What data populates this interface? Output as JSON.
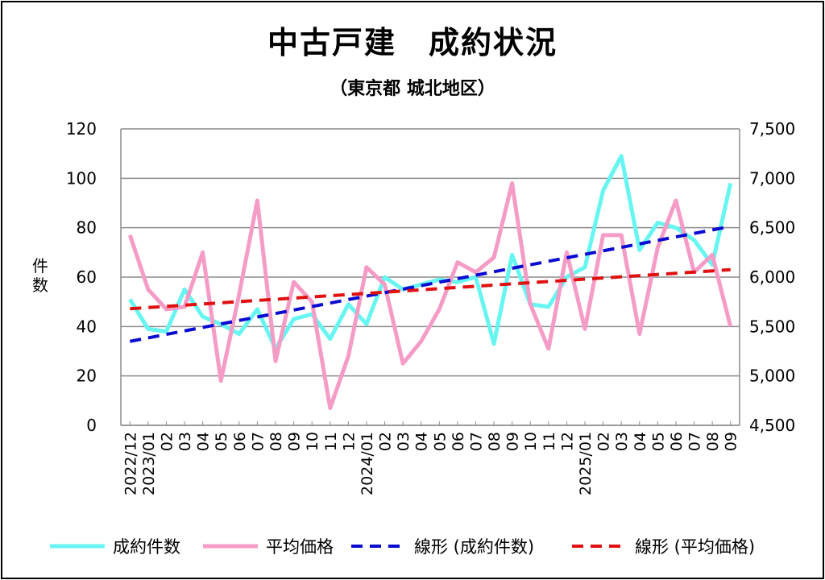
{
  "chart_data": {
    "type": "line",
    "title": "中古戸建　成約状況",
    "subtitle": "（東京都 城北地区）",
    "ylabel": "件数",
    "y2label": "",
    "xlabel": "",
    "categories": [
      "2022/12",
      "2023/01",
      "02",
      "03",
      "04",
      "05",
      "06",
      "07",
      "08",
      "09",
      "10",
      "11",
      "12",
      "2024/01",
      "02",
      "03",
      "04",
      "05",
      "06",
      "07",
      "08",
      "09",
      "10",
      "11",
      "12",
      "2025/01",
      "02",
      "03",
      "04",
      "05",
      "06",
      "07",
      "08",
      "09"
    ],
    "ylim": [
      0,
      120
    ],
    "y2lim": [
      4500,
      7500
    ],
    "yticks": [
      "0",
      "20",
      "40",
      "60",
      "80",
      "100",
      "120"
    ],
    "y2ticks": [
      "4,500",
      "5,000",
      "5,500",
      "6,000",
      "6,500",
      "7,000",
      "7,500"
    ],
    "grid": true,
    "legend_position": "bottom",
    "series": [
      {
        "name": "成約件数",
        "axis": "left",
        "color": "#66f5f0",
        "style": "solid",
        "values": [
          51,
          39,
          38,
          55,
          44,
          41,
          37,
          47,
          31,
          43,
          45,
          35,
          49,
          41,
          60,
          55,
          57,
          59,
          58,
          60,
          33,
          69,
          49,
          48,
          60,
          64,
          95,
          109,
          71,
          82,
          80,
          75,
          65,
          98
        ]
      },
      {
        "name": "平均価格",
        "axis": "right",
        "color": "#f59cc6",
        "style": "solid",
        "values": [
          6425,
          5875,
          5675,
          5700,
          6250,
          4950,
          5825,
          6775,
          5150,
          5950,
          5750,
          4675,
          5200,
          6100,
          5925,
          5125,
          5350,
          5675,
          6150,
          6050,
          6200,
          6950,
          5725,
          5275,
          6250,
          5475,
          6425,
          6425,
          5425,
          6300,
          6775,
          6050,
          6225,
          5500
        ]
      },
      {
        "name": "線形 (成約件数)",
        "axis": "left",
        "color": "#0a0ad0",
        "style": "dashed",
        "trend": [
          34,
          80.5
        ]
      },
      {
        "name": "線形 (平均価格)",
        "axis": "right",
        "color": "#e01010",
        "style": "dashed",
        "trend": [
          5680,
          6075
        ]
      }
    ]
  }
}
